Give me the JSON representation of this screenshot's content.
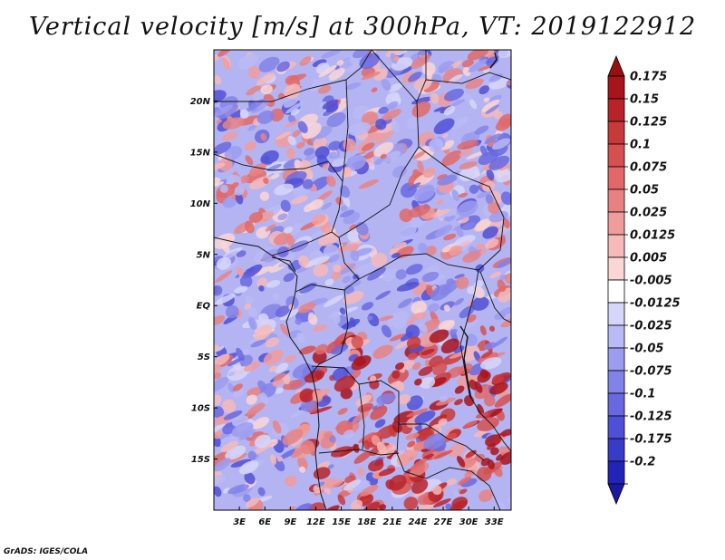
{
  "title": "Vertical velocity [m/s] at 300hPa, VT: 2019122912",
  "credit": "GrADS: IGES/COLA",
  "map": {
    "lon_range": [
      0,
      35
    ],
    "lat_range": [
      -20,
      25
    ],
    "lat_ticks": [
      {
        "value": 20,
        "label": "20N"
      },
      {
        "value": 15,
        "label": "15N"
      },
      {
        "value": 10,
        "label": "10N"
      },
      {
        "value": 5,
        "label": "5N"
      },
      {
        "value": 0,
        "label": "EQ"
      },
      {
        "value": -5,
        "label": "5S"
      },
      {
        "value": -10,
        "label": "10S"
      },
      {
        "value": -15,
        "label": "15S"
      }
    ],
    "lon_ticks": [
      {
        "value": 3,
        "label": "3E"
      },
      {
        "value": 6,
        "label": "6E"
      },
      {
        "value": 9,
        "label": "9E"
      },
      {
        "value": 12,
        "label": "12E"
      },
      {
        "value": 15,
        "label": "15E"
      },
      {
        "value": 18,
        "label": "18E"
      },
      {
        "value": 21,
        "label": "21E"
      },
      {
        "value": 24,
        "label": "24E"
      },
      {
        "value": 27,
        "label": "27E"
      },
      {
        "value": 30,
        "label": "30E"
      },
      {
        "value": 33,
        "label": "33E"
      }
    ]
  },
  "colorbar": {
    "levels": [
      {
        "label": "0.175",
        "color": "#a8141c"
      },
      {
        "label": "0.15",
        "color": "#b8232a"
      },
      {
        "label": "0.125",
        "color": "#c83a3a"
      },
      {
        "label": "0.1",
        "color": "#d65050"
      },
      {
        "label": "0.075",
        "color": "#e06868"
      },
      {
        "label": "0.05",
        "color": "#e88282"
      },
      {
        "label": "0.025",
        "color": "#f09c9c"
      },
      {
        "label": "0.0125",
        "color": "#f6baba"
      },
      {
        "label": "0.005",
        "color": "#fad6d6"
      },
      {
        "label": "-0.005",
        "color": "#ffffff"
      },
      {
        "label": "-0.0125",
        "color": "#d6d6fa"
      },
      {
        "label": "-0.025",
        "color": "#babaf6"
      },
      {
        "label": "-0.05",
        "color": "#9c9cf0"
      },
      {
        "label": "-0.075",
        "color": "#8282e8"
      },
      {
        "label": "-0.1",
        "color": "#6868e0"
      },
      {
        "label": "-0.125",
        "color": "#5050d6"
      },
      {
        "label": "-0.175",
        "color": "#3a3ac8"
      },
      {
        "label": "-0.2",
        "color": "#2323b8"
      }
    ],
    "top_color": "#961010",
    "bottom_color": "#1a1a9e"
  }
}
